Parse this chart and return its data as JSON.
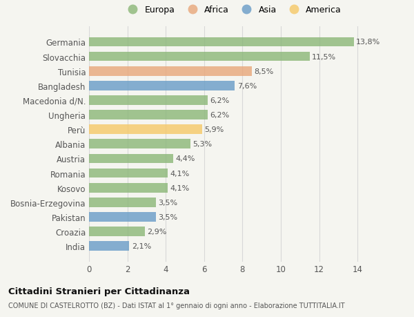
{
  "categories": [
    "India",
    "Croazia",
    "Pakistan",
    "Bosnia-Erzegovina",
    "Kosovo",
    "Romania",
    "Austria",
    "Albania",
    "Perù",
    "Ungheria",
    "Macedonia d/N.",
    "Bangladesh",
    "Tunisia",
    "Slovacchia",
    "Germania"
  ],
  "values": [
    2.1,
    2.9,
    3.5,
    3.5,
    4.1,
    4.1,
    4.4,
    5.3,
    5.9,
    6.2,
    6.2,
    7.6,
    8.5,
    11.5,
    13.8
  ],
  "labels": [
    "2,1%",
    "2,9%",
    "3,5%",
    "3,5%",
    "4,1%",
    "4,1%",
    "4,4%",
    "5,3%",
    "5,9%",
    "6,2%",
    "6,2%",
    "7,6%",
    "8,5%",
    "11,5%",
    "13,8%"
  ],
  "colors": [
    "#6b9ec8",
    "#8db87a",
    "#6b9ec8",
    "#8db87a",
    "#8db87a",
    "#8db87a",
    "#8db87a",
    "#8db87a",
    "#f5c96a",
    "#8db87a",
    "#8db87a",
    "#6b9ec8",
    "#e8a87c",
    "#8db87a",
    "#8db87a"
  ],
  "legend": [
    {
      "label": "Europa",
      "color": "#8db87a"
    },
    {
      "label": "Africa",
      "color": "#e8a87c"
    },
    {
      "label": "Asia",
      "color": "#6b9ec8"
    },
    {
      "label": "America",
      "color": "#f5c96a"
    }
  ],
  "xlim": [
    0,
    15
  ],
  "xticks": [
    0,
    2,
    4,
    6,
    8,
    10,
    12,
    14
  ],
  "title": "Cittadini Stranieri per Cittadinanza",
  "subtitle": "COMUNE DI CASTELROTTO (BZ) - Dati ISTAT al 1° gennaio di ogni anno - Elaborazione TUTTITALIA.IT",
  "bg_color": "#f5f5f0",
  "grid_color": "#d8d8d8",
  "label_color": "#555555",
  "value_color": "#555555",
  "bar_height": 0.65,
  "bar_alpha": 0.82
}
